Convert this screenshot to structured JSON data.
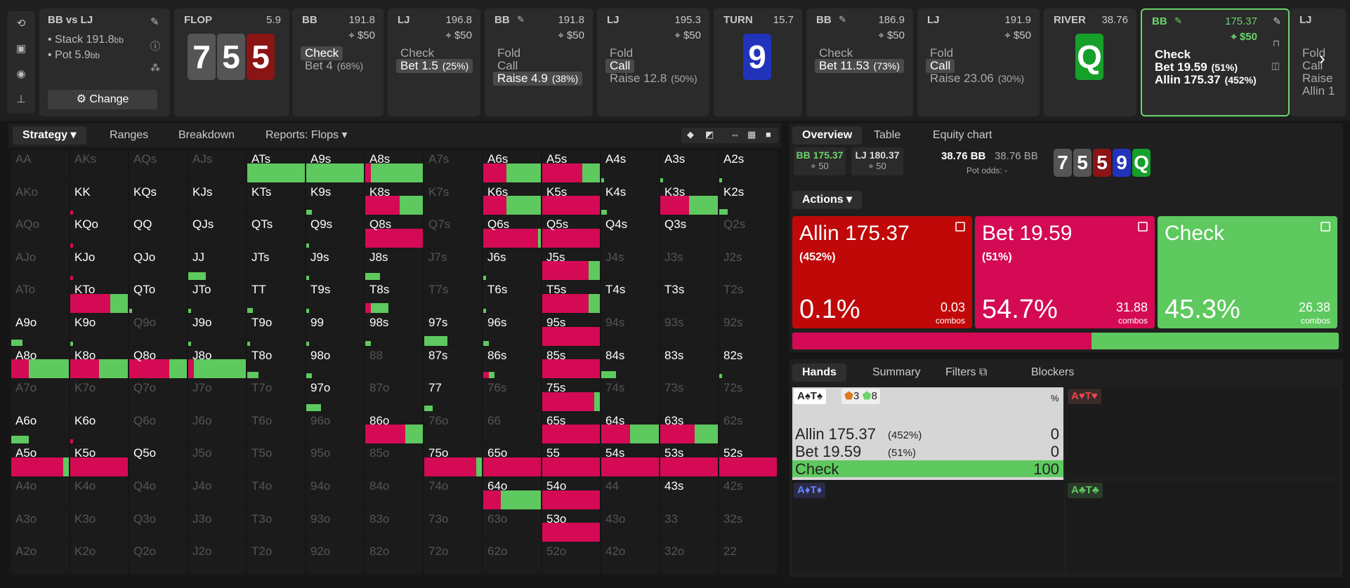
{
  "sidebar_icons": [
    "undo-icon",
    "save-icon",
    "gamepad-icon",
    "align-icon"
  ],
  "summary": {
    "title": "BB vs LJ",
    "stack": "Stack 191.8",
    "stack_unit": "bb",
    "pot": "Pot 5.9",
    "pot_unit": "bb",
    "change": "Change"
  },
  "panels": [
    {
      "kind": "board",
      "hdr": "FLOP",
      "num": "5.9",
      "cards": [
        {
          "r": "7",
          "c": "#555"
        },
        {
          "r": "5",
          "c": "#555"
        },
        {
          "r": "5",
          "c": "#8b1414"
        }
      ]
    },
    {
      "kind": "act",
      "hdr": "BB",
      "num": "191.8",
      "chip": "$50",
      "acts": [
        {
          "t": "Check",
          "sel": true
        },
        {
          "t": "Bet 4",
          "p": "(68%)"
        }
      ]
    },
    {
      "kind": "act",
      "hdr": "LJ",
      "num": "196.8",
      "chip": "$50",
      "acts": [
        {
          "t": "Check"
        },
        {
          "t": "Bet 1.5",
          "p": "(25%)",
          "sel": true
        }
      ]
    },
    {
      "kind": "act",
      "hdr": "BB",
      "num": "191.8",
      "chip": "$50",
      "pen": true,
      "acts": [
        {
          "t": "Fold"
        },
        {
          "t": "Call"
        },
        {
          "t": "Raise 4.9",
          "p": "(38%)",
          "sel": true
        }
      ]
    },
    {
      "kind": "act",
      "hdr": "LJ",
      "num": "195.3",
      "chip": "$50",
      "acts": [
        {
          "t": "Fold"
        },
        {
          "t": "Call",
          "sel": true
        },
        {
          "t": "Raise 12.8",
          "p": "(50%)"
        }
      ]
    },
    {
      "kind": "board",
      "hdr": "TURN",
      "num": "15.7",
      "cards": [
        {
          "r": "9",
          "c": "#2233bb"
        }
      ]
    },
    {
      "kind": "act",
      "hdr": "BB",
      "num": "186.9",
      "chip": "$50",
      "pen": true,
      "acts": [
        {
          "t": "Check"
        },
        {
          "t": "Bet 11.53",
          "p": "(73%)",
          "sel": true
        }
      ]
    },
    {
      "kind": "act",
      "hdr": "LJ",
      "num": "191.9",
      "chip": "$50",
      "acts": [
        {
          "t": "Fold"
        },
        {
          "t": "Call",
          "sel": true
        },
        {
          "t": "Raise 23.06",
          "p": "(30%)"
        }
      ]
    },
    {
      "kind": "board",
      "hdr": "RIVER",
      "num": "38.76",
      "cards": [
        {
          "r": "Q",
          "c": "#15a02a"
        }
      ]
    },
    {
      "kind": "act",
      "hdr": "BB",
      "num": "175.37",
      "chip": "$50",
      "pen": true,
      "active": true,
      "acts": [
        {
          "t": "Check"
        },
        {
          "t": "Bet 19.59",
          "p": "(51%)"
        },
        {
          "t": "Allin 175.37",
          "p": "(452%)"
        }
      ]
    },
    {
      "kind": "act",
      "hdr": "LJ",
      "num": "",
      "chip": "",
      "acts": [
        {
          "t": "Fold"
        },
        {
          "t": "Call"
        },
        {
          "t": "Raise"
        },
        {
          "t": "Allin 1"
        }
      ]
    }
  ],
  "strategy_tabs": [
    "Strategy",
    "Ranges",
    "Breakdown",
    "Reports: Flops"
  ],
  "right_tabs": [
    "Overview",
    "Table",
    "Equity chart"
  ],
  "overview": {
    "bb": "BB 175.37",
    "bb_sub": "50",
    "lj": "LJ 180.37",
    "lj_sub": "50",
    "pot_a": "38.76 BB",
    "pot_b": "38.76 BB",
    "pot_odds": "Pot odds:",
    "pot_odds_val": "-",
    "board": [
      {
        "r": "7",
        "c": "#555"
      },
      {
        "r": "5",
        "c": "#555"
      },
      {
        "r": "5",
        "c": "#8b1414"
      },
      {
        "r": "9",
        "c": "#2233bb"
      },
      {
        "r": "Q",
        "c": "#15a02a"
      }
    ]
  },
  "actions_label": "Actions",
  "actions": [
    {
      "t": "Allin 175.37",
      "s": "(452%)",
      "p": "0.1%",
      "c": "0.03",
      "cl": "combos",
      "color": "#c00808"
    },
    {
      "t": "Bet 19.59",
      "s": "(51%)",
      "p": "54.7%",
      "c": "31.88",
      "cl": "combos",
      "color": "#d40a55"
    },
    {
      "t": "Check",
      "s": "",
      "p": "45.3%",
      "c": "26.38",
      "cl": "combos",
      "color": "#5ec95e"
    }
  ],
  "freq_bar": {
    "bet": 0.547,
    "check": 0.453
  },
  "hand_tabs": [
    "Hands",
    "Summary",
    "Filters",
    "Blockers"
  ],
  "hand_detail": {
    "hand": "A♠T♠",
    "b1": "3",
    "b2": "8",
    "pct": "%",
    "rows": [
      {
        "t": "Allin 175.37",
        "p": "(452%)",
        "v": "0"
      },
      {
        "t": "Bet 19.59",
        "p": "(51%)",
        "v": "0"
      },
      {
        "t": "Check",
        "p": "",
        "v": "100"
      }
    ]
  },
  "other_hands": [
    "A♥T♥",
    "A♦T♦",
    "A♣T♣"
  ],
  "grid": [
    [
      "AA",
      "AKs",
      "AQs",
      "AJs",
      "ATs",
      "A9s",
      "A8s",
      "A7s",
      "A6s",
      "A5s",
      "A4s",
      "A3s",
      "A2s"
    ],
    [
      "AKo",
      "KK",
      "KQs",
      "KJs",
      "KTs",
      "K9s",
      "K8s",
      "K7s",
      "K6s",
      "K5s",
      "K4s",
      "K3s",
      "K2s"
    ],
    [
      "AQo",
      "KQo",
      "QQ",
      "QJs",
      "QTs",
      "Q9s",
      "Q8s",
      "Q7s",
      "Q6s",
      "Q5s",
      "Q4s",
      "Q3s",
      "Q2s"
    ],
    [
      "AJo",
      "KJo",
      "QJo",
      "JJ",
      "JTs",
      "J9s",
      "J8s",
      "J7s",
      "J6s",
      "J5s",
      "J4s",
      "J3s",
      "J2s"
    ],
    [
      "ATo",
      "KTo",
      "QTo",
      "JTo",
      "TT",
      "T9s",
      "T8s",
      "T7s",
      "T6s",
      "T5s",
      "T4s",
      "T3s",
      "T2s"
    ],
    [
      "A9o",
      "K9o",
      "Q9o",
      "J9o",
      "T9o",
      "99",
      "98s",
      "97s",
      "96s",
      "95s",
      "94s",
      "93s",
      "92s"
    ],
    [
      "A8o",
      "K8o",
      "Q8o",
      "J8o",
      "T8o",
      "98o",
      "88",
      "87s",
      "86s",
      "85s",
      "84s",
      "83s",
      "82s"
    ],
    [
      "A7o",
      "K7o",
      "Q7o",
      "J7o",
      "T7o",
      "97o",
      "87o",
      "77",
      "76s",
      "75s",
      "74s",
      "73s",
      "72s"
    ],
    [
      "A6o",
      "K6o",
      "Q6o",
      "J6o",
      "T6o",
      "96o",
      "86o",
      "76o",
      "66",
      "65s",
      "64s",
      "63s",
      "62s"
    ],
    [
      "A5o",
      "K5o",
      "Q5o",
      "J5o",
      "T5o",
      "95o",
      "85o",
      "75o",
      "65o",
      "55",
      "54s",
      "53s",
      "52s"
    ],
    [
      "A4o",
      "K4o",
      "Q4o",
      "J4o",
      "T4o",
      "94o",
      "84o",
      "74o",
      "64o",
      "54o",
      "44",
      "43s",
      "42s"
    ],
    [
      "A3o",
      "K3o",
      "Q3o",
      "J3o",
      "T3o",
      "93o",
      "83o",
      "73o",
      "63o",
      "53o",
      "43o",
      "33",
      "32s"
    ],
    [
      "A2o",
      "K2o",
      "Q2o",
      "J2o",
      "T2o",
      "92o",
      "82o",
      "72o",
      "62o",
      "52o",
      "42o",
      "32o",
      "22"
    ]
  ],
  "grid_dim": [
    "AA",
    "AKs",
    "AQs",
    "AJs",
    "A7s",
    "Q2s",
    "AKo",
    "K7s",
    "AQo",
    "Q7s",
    "AJo",
    "J7s",
    "J4s",
    "J3s",
    "J2s",
    "ATo",
    "T7s",
    "T2s",
    "Q9o",
    "94s",
    "93s",
    "92s",
    "88",
    "A7o",
    "K7o",
    "Q7o",
    "J7o",
    "T7o",
    "87o",
    "76s",
    "74s",
    "73s",
    "72s",
    "Q6o",
    "J6o",
    "T6o",
    "96o",
    "76o",
    "66",
    "62s",
    "J5o",
    "T5o",
    "95o",
    "85o",
    "A4o",
    "K4o",
    "Q4o",
    "J4o",
    "T4o",
    "94o",
    "84o",
    "74o",
    "44",
    "42s",
    "A3o",
    "K3o",
    "Q3o",
    "J3o",
    "T3o",
    "93o",
    "83o",
    "73o",
    "63o",
    "43o",
    "33",
    "32s",
    "A2o",
    "K2o",
    "Q2o",
    "J2o",
    "T2o",
    "92o",
    "82o",
    "72o",
    "62o",
    "52o",
    "42o",
    "32o",
    "22"
  ],
  "cell_freqs": {
    "ATs": [
      0,
      1
    ],
    "A9s": [
      0,
      1
    ],
    "A8s": [
      0.1,
      0.9
    ],
    "A6s": [
      0.4,
      0.6
    ],
    "A5s": [
      0.7,
      0.3
    ],
    "A4s": [
      0,
      0.05
    ],
    "A3s": [
      0,
      0.05
    ],
    "A2s": [
      0,
      0.05
    ],
    "KK": [
      0.05,
      0
    ],
    "K9s": [
      0,
      0.1
    ],
    "K8s": [
      0.6,
      0.4
    ],
    "K6s": [
      0.4,
      0.6
    ],
    "K5s": [
      1,
      0
    ],
    "K4s": [
      0,
      0.1
    ],
    "K3s": [
      0.5,
      0.5
    ],
    "K2s": [
      0,
      0.15
    ],
    "KQo": [
      0.05,
      0
    ],
    "Q9s": [
      0,
      0.05
    ],
    "Q8s": [
      1,
      0
    ],
    "Q6s": [
      0.95,
      0.05
    ],
    "Q5s": [
      1,
      0
    ],
    "KJo": [
      0.05,
      0
    ],
    "JJ": [
      0,
      0.3
    ],
    "J9s": [
      0,
      0.05
    ],
    "J8s": [
      0,
      0.25
    ],
    "J6s": [
      0,
      0.05
    ],
    "J5s": [
      0.8,
      0.2
    ],
    "KTo": [
      0.7,
      0.3
    ],
    "QTo": [
      0,
      0.05
    ],
    "JTo": [
      0,
      0.05
    ],
    "TT": [
      0,
      0.1
    ],
    "T9s": [
      0,
      0.05
    ],
    "T8s": [
      0.1,
      0.3
    ],
    "T6s": [
      0,
      0.05
    ],
    "T5s": [
      0.8,
      0.2
    ],
    "A9o": [
      0,
      0.2
    ],
    "K9o": [
      0,
      0.05
    ],
    "J9o": [
      0,
      0.05
    ],
    "T9o": [
      0,
      0.05
    ],
    "99": [
      0,
      0.05
    ],
    "98s": [
      0,
      0.1
    ],
    "97s": [
      0,
      0.4
    ],
    "96s": [
      0,
      0.1
    ],
    "95s": [
      1,
      0
    ],
    "A8o": [
      0.3,
      0.7
    ],
    "K8o": [
      0.5,
      0.5
    ],
    "Q8o": [
      0.7,
      0.3
    ],
    "J8o": [
      0.1,
      0.9
    ],
    "T8o": [
      0,
      0.2
    ],
    "98o": [
      0,
      0.1
    ],
    "86s": [
      0.1,
      0.1
    ],
    "85s": [
      1,
      0
    ],
    "84s": [
      0,
      0.25
    ],
    "82s": [
      0,
      0.05
    ],
    "97o": [
      0,
      0.25
    ],
    "77": [
      0,
      0.15
    ],
    "75s": [
      0.9,
      0.1
    ],
    "A6o": [
      0,
      0.3
    ],
    "K6o": [
      0.05,
      0
    ],
    "86o": [
      0.7,
      0.3
    ],
    "65s": [
      1,
      0
    ],
    "64s": [
      0.5,
      0.5
    ],
    "63s": [
      0.6,
      0.4
    ],
    "A5o": [
      0.9,
      0.1
    ],
    "K5o": [
      1,
      0
    ],
    "75o": [
      0.9,
      0.1
    ],
    "65o": [
      1,
      0
    ],
    "55": [
      1,
      0
    ],
    "54s": [
      1,
      0
    ],
    "53s": [
      1,
      0
    ],
    "52s": [
      1,
      0
    ],
    "64o": [
      0.3,
      0.7
    ],
    "54o": [
      1,
      0
    ],
    "53o": [
      1,
      0
    ]
  }
}
